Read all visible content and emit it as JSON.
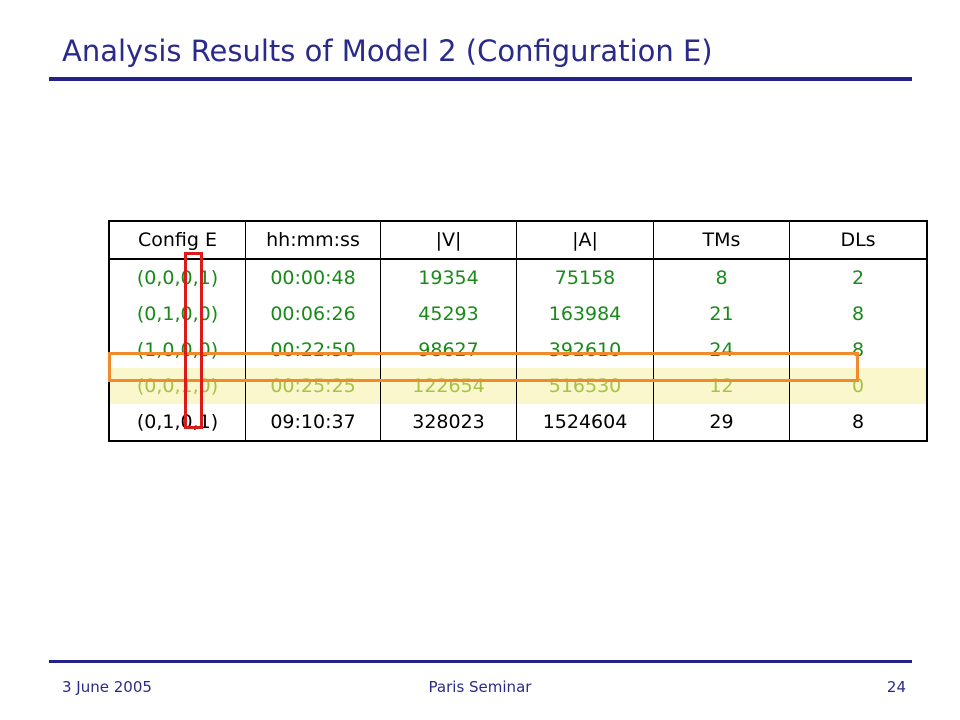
{
  "slide": {
    "title": "Analysis Results of Model 2 (Configuration E)"
  },
  "footer": {
    "date": "3 June 2005",
    "event": "Paris Seminar",
    "page": "24"
  },
  "table": {
    "headers": [
      "Config E",
      "hh:mm:ss",
      "|V|",
      "|A|",
      "TMs",
      "DLs"
    ],
    "rows": [
      [
        "(0,0,0,1)",
        "00:00:48",
        "19354",
        "75158",
        "8",
        "2"
      ],
      [
        "(0,1,0,0)",
        "00:06:26",
        "45293",
        "163984",
        "21",
        "8"
      ],
      [
        "(1,0,0,0)",
        "00:22:50",
        "98627",
        "392610",
        "24",
        "8"
      ],
      [
        "(0,0,1,0)",
        "00:25:25",
        "122654",
        "516530",
        "12",
        "0"
      ],
      [
        "(0,1,0,1)",
        "09:10:37",
        "328023",
        "1524604",
        "29",
        "8"
      ]
    ]
  },
  "colors": {
    "title": "#2a2a8a",
    "rule": "#222288",
    "green_rows": "#1a8a1a",
    "highlight_text": "#a6c24a",
    "highlight_fill": "#fbf7cc",
    "row_box": "#f08a2a",
    "column_box": "#dd1a1a"
  }
}
